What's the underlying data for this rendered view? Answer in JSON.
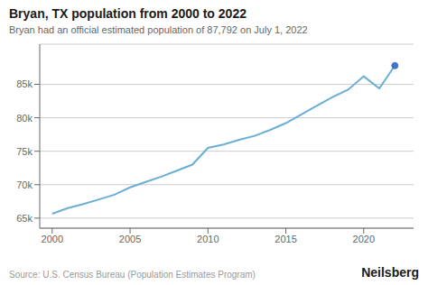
{
  "chart_data": {
    "type": "line",
    "title": "Bryan, TX population from 2000 to 2022",
    "subtitle": "Bryan had an official estimated population of 87,792 on July 1, 2022",
    "annotations": [
      "Source: U.S. Census Bureau (Population Estimates Program)",
      "Neilsberg"
    ],
    "x": [
      2000,
      2001,
      2002,
      2003,
      2004,
      2005,
      2006,
      2007,
      2008,
      2009,
      2010,
      2011,
      2012,
      2013,
      2014,
      2015,
      2016,
      2017,
      2018,
      2019,
      2020,
      2021,
      2022
    ],
    "series": [
      {
        "type": "line",
        "color": "#6aaed6",
        "values": [
          65660,
          66500,
          67100,
          67800,
          68500,
          69600,
          70400,
          71200,
          72100,
          73000,
          75500,
          76000,
          76700,
          77300,
          78200,
          79200,
          80500,
          81800,
          83100,
          84200,
          86200,
          84400,
          87792
        ]
      },
      {
        "type": "scatter",
        "color": "#4472c4",
        "values": [
          null,
          null,
          null,
          null,
          null,
          null,
          null,
          null,
          null,
          null,
          null,
          null,
          null,
          null,
          null,
          null,
          null,
          null,
          null,
          null,
          null,
          null,
          87792
        ]
      }
    ],
    "xlim": [
      1999.2,
      2023.2
    ],
    "xticks": [
      2000,
      2005,
      2010,
      2015,
      2020
    ],
    "ylim": [
      63500,
      91000
    ],
    "yticks": [
      {
        "value": 65000,
        "label": "65k"
      },
      {
        "value": 70000,
        "label": "70k"
      },
      {
        "value": 75000,
        "label": "75k"
      },
      {
        "value": 80000,
        "label": "80k"
      },
      {
        "value": 85000,
        "label": "85k"
      }
    ],
    "grid": true
  }
}
